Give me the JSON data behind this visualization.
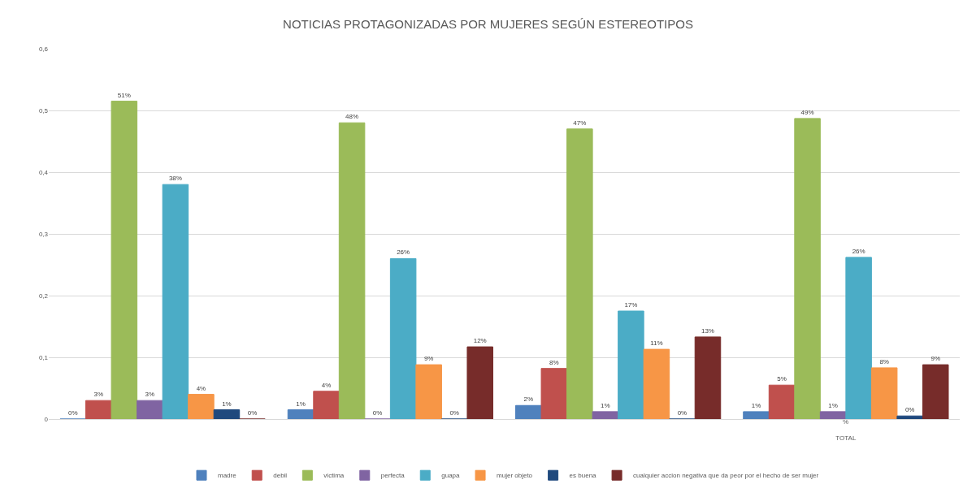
{
  "chart_data": {
    "type": "bar",
    "title": "NOTICIAS PROTAGONIZADAS POR MUJERES SEGÚN ESTEREOTIPOS",
    "categories": [
      null,
      null,
      null,
      "TOTAL"
    ],
    "series": [
      {
        "name": "madre",
        "color": "#4f81bd",
        "values": [
          0,
          0.015,
          0.022,
          0.012
        ],
        "value_labels": [
          "0%",
          "1%",
          "2%",
          "1%"
        ]
      },
      {
        "name": "debil",
        "color": "#c0504d",
        "values": [
          0.03,
          0.045,
          0.082,
          0.055
        ],
        "value_labels": [
          "3%",
          "4%",
          "8%",
          "5%"
        ]
      },
      {
        "name": "victima",
        "color": "#9bbb59",
        "values": [
          0.515,
          0.48,
          0.47,
          0.487
        ],
        "value_labels": [
          "51%",
          "48%",
          "47%",
          "49%"
        ]
      },
      {
        "name": "perfecta",
        "color": "#8064a2",
        "values": [
          0.03,
          0,
          0.012,
          0.012
        ],
        "value_labels": [
          "3%",
          "0%",
          "1%",
          "1%"
        ]
      },
      {
        "name": "guapa",
        "color": "#4bacc6",
        "values": [
          0.38,
          0.26,
          0.175,
          0.262
        ],
        "value_labels": [
          "38%",
          "26%",
          "17%",
          "26%"
        ]
      },
      {
        "name": "mujer objeto",
        "color": "#f79646",
        "values": [
          0.04,
          0.088,
          0.113,
          0.083
        ],
        "value_labels": [
          "4%",
          "9%",
          "11%",
          "8%"
        ]
      },
      {
        "name": "es buena",
        "color": "#1f497d",
        "values": [
          0.015,
          0,
          0,
          0.005
        ],
        "value_labels": [
          "1%",
          "0%",
          "0%",
          "0%"
        ]
      },
      {
        "name": "cualquier accion negativa que da peor por el hecho de ser mujer",
        "color": "#772c2a",
        "values": [
          0,
          0.117,
          0.133,
          0.088
        ],
        "value_labels": [
          "0%",
          "12%",
          "13%",
          "9%"
        ]
      }
    ],
    "ylim": [
      0,
      0.6
    ],
    "yticks": [
      0,
      {
        "value": 0.1,
        "label": "0,1"
      },
      {
        "value": 0.2,
        "label": "0,2"
      },
      {
        "value": 0.3,
        "label": "0,3"
      },
      {
        "value": 0.4,
        "label": "0,4"
      },
      {
        "value": 0.5,
        "label": "0,5"
      },
      {
        "value": 0.6,
        "label": "0,6"
      }
    ],
    "grid": "y",
    "legend": "bottom",
    "annotations": [
      "%"
    ]
  }
}
